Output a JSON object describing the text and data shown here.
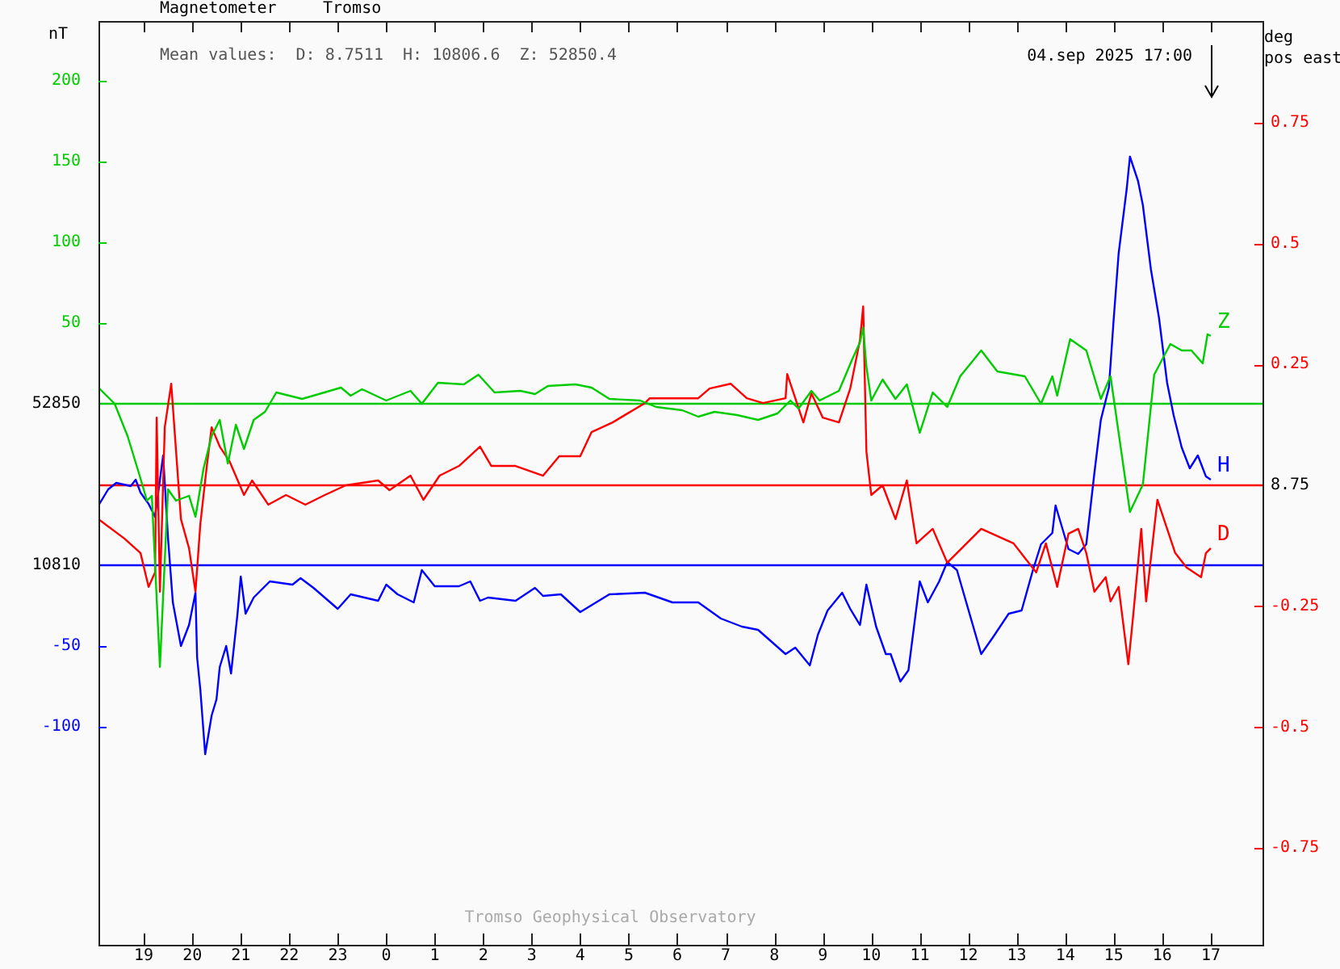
{
  "chart_data": {
    "type": "line",
    "title": "Magnetometer",
    "subtitle": "Tromso",
    "y3label": "deg\npos east",
    "annotations": [
      "Mean values:  D: 8.7511  H: 10806.6  Z: 52850.4",
      "04.sep 2025 17:00",
      "Tromso Geophysical Observatory",
      "nT",
      "52850",
      "8.75",
      "10810"
    ],
    "xlim": [
      "2025-09-03T18:04",
      "2025-09-04T18:04"
    ],
    "xticks": [
      {
        "value": "2025-09-03T19:00",
        "label": "19"
      },
      {
        "value": "2025-09-03T20:00",
        "label": "20"
      },
      {
        "value": "2025-09-03T21:00",
        "label": "21"
      },
      {
        "value": "2025-09-03T22:00",
        "label": "22"
      },
      {
        "value": "2025-09-03T23:00",
        "label": "23"
      },
      {
        "value": "2025-09-04T00:00",
        "label": "0"
      },
      {
        "value": "2025-09-04T01:00",
        "label": "1"
      },
      {
        "value": "2025-09-04T02:00",
        "label": "2"
      },
      {
        "value": "2025-09-04T03:00",
        "label": "3"
      },
      {
        "value": "2025-09-04T04:00",
        "label": "4"
      },
      {
        "value": "2025-09-04T05:00",
        "label": "5"
      },
      {
        "value": "2025-09-04T06:00",
        "label": "6"
      },
      {
        "value": "2025-09-04T07:00",
        "label": "7"
      },
      {
        "value": "2025-09-04T08:00",
        "label": "8"
      },
      {
        "value": "2025-09-04T09:00",
        "label": "9"
      },
      {
        "value": "2025-09-04T10:00",
        "label": "10"
      },
      {
        "value": "2025-09-04T11:00",
        "label": "11"
      },
      {
        "value": "2025-09-04T12:00",
        "label": "12"
      },
      {
        "value": "2025-09-04T13:00",
        "label": "13"
      },
      {
        "value": "2025-09-04T14:00",
        "label": "14"
      },
      {
        "value": "2025-09-04T15:00",
        "label": "15"
      },
      {
        "value": "2025-09-04T16:00",
        "label": "16"
      },
      {
        "value": "2025-09-04T17:00",
        "label": "17"
      }
    ],
    "ylim": [
      -335,
      237
    ],
    "yticks": [
      50,
      100,
      150,
      200
    ],
    "y2lim": [
      -235,
      337
    ],
    "y2ticks": [
      -50,
      -100
    ],
    "y3lim": [
      -0.95,
      0.96
    ],
    "y3ticks": [
      0.25,
      0.5,
      0.75,
      -0.25,
      -0.5,
      -0.75
    ],
    "ref_lines": [
      {
        "axis": "y",
        "value": 0,
        "color": "#00cc00"
      },
      {
        "axis": "y3",
        "value": 0,
        "color": "#ff0000"
      },
      {
        "axis": "y2",
        "value": 0,
        "color": "#0000ff"
      }
    ],
    "grid": false,
    "legend": false,
    "series": [
      {
        "name": "Z",
        "color": "#00cc00",
        "axis": "y",
        "x": [
          "2025-09-03T18:04",
          "2025-09-03T18:24",
          "2025-09-03T18:40",
          "2025-09-03T18:54",
          "2025-09-03T19:04",
          "2025-09-03T19:10",
          "2025-09-03T19:20",
          "2025-09-03T19:30",
          "2025-09-03T19:40",
          "2025-09-03T19:56",
          "2025-09-03T20:04",
          "2025-09-03T20:14",
          "2025-09-03T20:24",
          "2025-09-03T20:34",
          "2025-09-03T20:44",
          "2025-09-03T20:54",
          "2025-09-03T21:04",
          "2025-09-03T21:16",
          "2025-09-03T21:30",
          "2025-09-03T21:44",
          "2025-09-03T22:16",
          "2025-09-03T23:04",
          "2025-09-03T23:16",
          "2025-09-03T23:30",
          "2025-09-04T00:00",
          "2025-09-04T00:30",
          "2025-09-04T00:44",
          "2025-09-04T01:04",
          "2025-09-04T01:36",
          "2025-09-04T01:54",
          "2025-09-04T02:14",
          "2025-09-04T02:46",
          "2025-09-04T03:04",
          "2025-09-04T03:20",
          "2025-09-04T03:54",
          "2025-09-04T04:14",
          "2025-09-04T04:36",
          "2025-09-04T05:14",
          "2025-09-04T05:34",
          "2025-09-04T06:06",
          "2025-09-04T06:26",
          "2025-09-04T06:46",
          "2025-09-04T07:14",
          "2025-09-04T07:40",
          "2025-09-04T08:04",
          "2025-09-04T08:20",
          "2025-09-04T08:30",
          "2025-09-04T08:46",
          "2025-09-04T08:56",
          "2025-09-04T09:20",
          "2025-09-04T09:36",
          "2025-09-04T09:46",
          "2025-09-04T09:50",
          "2025-09-04T09:54",
          "2025-09-04T10:00",
          "2025-09-04T10:14",
          "2025-09-04T10:30",
          "2025-09-04T10:44",
          "2025-09-04T11:00",
          "2025-09-04T11:16",
          "2025-09-04T11:34",
          "2025-09-04T11:50",
          "2025-09-04T12:16",
          "2025-09-04T12:36",
          "2025-09-04T13:10",
          "2025-09-04T13:30",
          "2025-09-04T13:44",
          "2025-09-04T13:50",
          "2025-09-04T14:06",
          "2025-09-04T14:26",
          "2025-09-04T14:44",
          "2025-09-04T14:56",
          "2025-09-04T15:20",
          "2025-09-04T15:36",
          "2025-09-04T15:50",
          "2025-09-04T16:10",
          "2025-09-04T16:24",
          "2025-09-04T16:36",
          "2025-09-04T16:50",
          "2025-09-04T16:56",
          "2025-09-04T17:00"
        ],
        "values": [
          10,
          0,
          -20,
          -43,
          -60,
          -57,
          -163,
          -53,
          -60,
          -57,
          -70,
          -40,
          -20,
          -10,
          -37,
          -13,
          -28,
          -10,
          -5,
          7,
          3,
          10,
          5,
          9,
          2,
          8,
          0,
          13,
          12,
          18,
          7,
          8,
          6,
          11,
          12,
          10,
          3,
          2,
          -2,
          -4,
          -8,
          -5,
          -7,
          -10,
          -6,
          2,
          -3,
          8,
          2,
          8,
          27,
          38,
          47,
          23,
          2,
          15,
          3,
          12,
          -18,
          7,
          -2,
          17,
          33,
          20,
          17,
          0,
          17,
          5,
          40,
          33,
          3,
          17,
          -67,
          -50,
          18,
          37,
          33,
          33,
          25,
          43,
          42
        ]
      },
      {
        "name": "D",
        "color": "#ff0000",
        "axis": "y3",
        "x": [
          "2025-09-03T18:04",
          "2025-09-03T18:36",
          "2025-09-03T18:56",
          "2025-09-03T19:06",
          "2025-09-03T19:14",
          "2025-09-03T19:16",
          "2025-09-03T19:20",
          "2025-09-03T19:26",
          "2025-09-03T19:34",
          "2025-09-03T19:40",
          "2025-09-03T19:46",
          "2025-09-03T19:56",
          "2025-09-03T20:04",
          "2025-09-03T20:10",
          "2025-09-03T20:18",
          "2025-09-03T20:24",
          "2025-09-03T20:34",
          "2025-09-03T20:46",
          "2025-09-03T21:04",
          "2025-09-03T21:14",
          "2025-09-03T21:34",
          "2025-09-03T21:56",
          "2025-09-03T22:20",
          "2025-09-03T22:44",
          "2025-09-03T23:10",
          "2025-09-03T23:50",
          "2025-09-04T00:04",
          "2025-09-04T00:30",
          "2025-09-04T00:46",
          "2025-09-04T01:06",
          "2025-09-04T01:30",
          "2025-09-04T01:56",
          "2025-09-04T02:10",
          "2025-09-04T02:40",
          "2025-09-04T03:14",
          "2025-09-04T03:34",
          "2025-09-04T04:00",
          "2025-09-04T04:14",
          "2025-09-04T04:40",
          "2025-09-04T05:00",
          "2025-09-04T05:20",
          "2025-09-04T05:26",
          "2025-09-04T05:54",
          "2025-09-04T06:26",
          "2025-09-04T06:40",
          "2025-09-04T07:06",
          "2025-09-04T07:26",
          "2025-09-04T07:46",
          "2025-09-04T08:14",
          "2025-09-04T08:16",
          "2025-09-04T08:26",
          "2025-09-04T08:36",
          "2025-09-04T08:46",
          "2025-09-04T09:00",
          "2025-09-04T09:20",
          "2025-09-04T09:34",
          "2025-09-04T09:46",
          "2025-09-04T09:50",
          "2025-09-04T09:54",
          "2025-09-04T10:00",
          "2025-09-04T10:14",
          "2025-09-04T10:30",
          "2025-09-04T10:44",
          "2025-09-04T10:56",
          "2025-09-04T11:16",
          "2025-09-04T11:34",
          "2025-09-04T12:16",
          "2025-09-04T12:56",
          "2025-09-04T13:24",
          "2025-09-04T13:36",
          "2025-09-04T13:50",
          "2025-09-04T14:04",
          "2025-09-04T14:16",
          "2025-09-04T14:26",
          "2025-09-04T14:36",
          "2025-09-04T14:50",
          "2025-09-04T14:56",
          "2025-09-04T15:06",
          "2025-09-04T15:18",
          "2025-09-04T15:24",
          "2025-09-04T15:34",
          "2025-09-04T15:40",
          "2025-09-04T15:54",
          "2025-09-04T16:04",
          "2025-09-04T16:16",
          "2025-09-04T16:30",
          "2025-09-04T16:48",
          "2025-09-04T16:54",
          "2025-09-04T17:00"
        ],
        "values": [
          -0.07,
          -0.11,
          -0.14,
          -0.21,
          -0.18,
          0.14,
          -0.22,
          0.12,
          0.21,
          0.07,
          -0.07,
          -0.13,
          -0.22,
          -0.08,
          0.04,
          0.12,
          0.08,
          0.05,
          -0.02,
          0.01,
          -0.04,
          -0.02,
          -0.04,
          -0.02,
          0,
          0.01,
          -0.01,
          0.02,
          -0.03,
          0.02,
          0.04,
          0.08,
          0.04,
          0.04,
          0.02,
          0.06,
          0.06,
          0.11,
          0.13,
          0.15,
          0.17,
          0.18,
          0.18,
          0.18,
          0.2,
          0.21,
          0.18,
          0.17,
          0.18,
          0.23,
          0.18,
          0.13,
          0.19,
          0.14,
          0.13,
          0.2,
          0.3,
          0.37,
          0.07,
          -0.02,
          0,
          -0.07,
          0.01,
          -0.12,
          -0.09,
          -0.16,
          -0.09,
          -0.12,
          -0.18,
          -0.12,
          -0.21,
          -0.1,
          -0.09,
          -0.14,
          -0.22,
          -0.19,
          -0.24,
          -0.21,
          -0.37,
          -0.27,
          -0.09,
          -0.24,
          -0.03,
          -0.08,
          -0.14,
          -0.17,
          -0.19,
          -0.14,
          -0.13
        ]
      },
      {
        "name": "H",
        "color": "#0000ff",
        "axis": "y2",
        "x": [
          "2025-09-03T18:04",
          "2025-09-03T18:16",
          "2025-09-03T18:26",
          "2025-09-03T18:44",
          "2025-09-03T18:50",
          "2025-09-03T18:56",
          "2025-09-03T19:06",
          "2025-09-03T19:14",
          "2025-09-03T19:24",
          "2025-09-03T19:30",
          "2025-09-03T19:36",
          "2025-09-03T19:46",
          "2025-09-03T19:56",
          "2025-09-03T20:04",
          "2025-09-03T20:06",
          "2025-09-03T20:10",
          "2025-09-03T20:16",
          "2025-09-03T20:24",
          "2025-09-03T20:30",
          "2025-09-03T20:34",
          "2025-09-03T20:42",
          "2025-09-03T20:48",
          "2025-09-03T20:56",
          "2025-09-03T21:00",
          "2025-09-03T21:06",
          "2025-09-03T21:16",
          "2025-09-03T21:36",
          "2025-09-03T22:04",
          "2025-09-03T22:14",
          "2025-09-03T22:30",
          "2025-09-03T23:00",
          "2025-09-03T23:16",
          "2025-09-03T23:50",
          "2025-09-04T00:00",
          "2025-09-04T00:14",
          "2025-09-04T00:34",
          "2025-09-04T00:44",
          "2025-09-04T01:00",
          "2025-09-04T01:30",
          "2025-09-04T01:44",
          "2025-09-04T01:56",
          "2025-09-04T02:06",
          "2025-09-04T02:40",
          "2025-09-04T03:04",
          "2025-09-04T03:14",
          "2025-09-04T03:36",
          "2025-09-04T04:00",
          "2025-09-04T04:36",
          "2025-09-04T05:20",
          "2025-09-04T05:54",
          "2025-09-04T06:26",
          "2025-09-04T06:54",
          "2025-09-04T07:20",
          "2025-09-04T07:40",
          "2025-09-04T08:14",
          "2025-09-04T08:26",
          "2025-09-04T08:44",
          "2025-09-04T08:54",
          "2025-09-04T09:06",
          "2025-09-04T09:24",
          "2025-09-04T09:34",
          "2025-09-04T09:46",
          "2025-09-04T09:54",
          "2025-09-04T10:06",
          "2025-09-04T10:18",
          "2025-09-04T10:24",
          "2025-09-04T10:36",
          "2025-09-04T10:46",
          "2025-09-04T11:00",
          "2025-09-04T11:10",
          "2025-09-04T11:24",
          "2025-09-04T11:34",
          "2025-09-04T11:46",
          "2025-09-04T12:16",
          "2025-09-04T12:30",
          "2025-09-04T12:50",
          "2025-09-04T13:06",
          "2025-09-04T13:20",
          "2025-09-04T13:30",
          "2025-09-04T13:44",
          "2025-09-04T13:48",
          "2025-09-04T14:04",
          "2025-09-04T14:16",
          "2025-09-04T14:26",
          "2025-09-04T14:36",
          "2025-09-04T14:44",
          "2025-09-04T14:54",
          "2025-09-04T15:00",
          "2025-09-04T15:06",
          "2025-09-04T15:16",
          "2025-09-04T15:20",
          "2025-09-04T15:30",
          "2025-09-04T15:36",
          "2025-09-04T15:46",
          "2025-09-04T15:56",
          "2025-09-04T16:06",
          "2025-09-04T16:14",
          "2025-09-04T16:24",
          "2025-09-04T16:34",
          "2025-09-04T16:44",
          "2025-09-04T16:54",
          "2025-09-04T17:00"
        ],
        "values": [
          37,
          47,
          51,
          49,
          53,
          45,
          38,
          30,
          68,
          17,
          -23,
          -50,
          -37,
          -17,
          -57,
          -77,
          -117,
          -93,
          -83,
          -63,
          -50,
          -67,
          -30,
          -7,
          -30,
          -20,
          -10,
          -12,
          -8,
          -14,
          -27,
          -18,
          -22,
          -12,
          -18,
          -23,
          -3,
          -13,
          -13,
          -10,
          -22,
          -20,
          -22,
          -14,
          -19,
          -18,
          -29,
          -18,
          -17,
          -23,
          -23,
          -33,
          -38,
          -40,
          -55,
          -51,
          -62,
          -43,
          -28,
          -17,
          -27,
          -37,
          -12,
          -38,
          -55,
          -55,
          -72,
          -65,
          -10,
          -23,
          -10,
          2,
          -3,
          -55,
          -45,
          -30,
          -28,
          -3,
          13,
          20,
          37,
          10,
          7,
          13,
          57,
          90,
          110,
          153,
          193,
          233,
          253,
          238,
          223,
          183,
          153,
          113,
          93,
          73,
          60,
          68,
          55,
          53
        ]
      }
    ]
  }
}
